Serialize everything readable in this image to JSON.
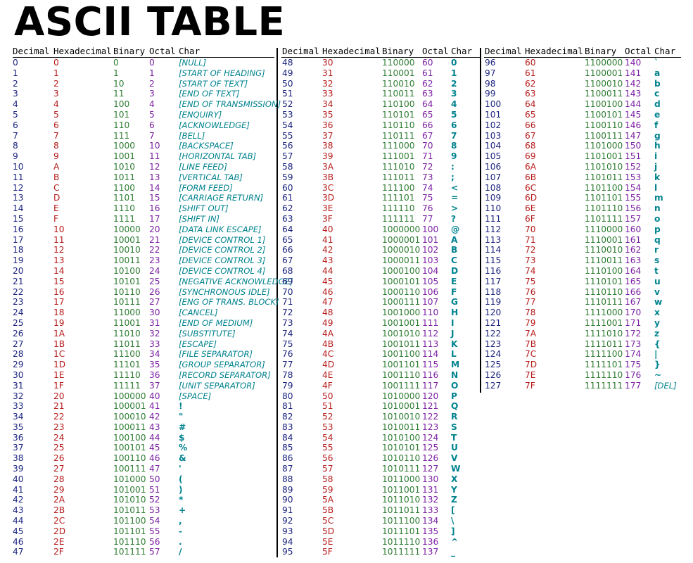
{
  "title": "ASCII TABLE",
  "header": {
    "dec": "Decimal",
    "hex": "Hexadecimal",
    "bin": "Binary",
    "oct": "Octal",
    "chr": "Char"
  },
  "colors": {
    "decimal": "#1a237e",
    "hex": "#b71c1c",
    "binary": "#2e7d32",
    "octal": "#7b1fa2",
    "char": "#00838f"
  },
  "panels": [
    {
      "rows": [
        [
          "0",
          "0",
          "0",
          "0",
          "[NULL]"
        ],
        [
          "1",
          "1",
          "1",
          "1",
          "[START OF HEADING]"
        ],
        [
          "2",
          "2",
          "10",
          "2",
          "[START OF TEXT]"
        ],
        [
          "3",
          "3",
          "11",
          "3",
          "[END OF TEXT]"
        ],
        [
          "4",
          "4",
          "100",
          "4",
          "[END OF TRANSMISSION]"
        ],
        [
          "5",
          "5",
          "101",
          "5",
          "[ENQUIRY]"
        ],
        [
          "6",
          "6",
          "110",
          "6",
          "[ACKNOWLEDGE]"
        ],
        [
          "7",
          "7",
          "111",
          "7",
          "[BELL]"
        ],
        [
          "8",
          "8",
          "1000",
          "10",
          "[BACKSPACE]"
        ],
        [
          "9",
          "9",
          "1001",
          "11",
          "[HORIZONTAL TAB]"
        ],
        [
          "10",
          "A",
          "1010",
          "12",
          "[LINE FEED]"
        ],
        [
          "11",
          "B",
          "1011",
          "13",
          "[VERTICAL TAB]"
        ],
        [
          "12",
          "C",
          "1100",
          "14",
          "[FORM FEED]"
        ],
        [
          "13",
          "D",
          "1101",
          "15",
          "[CARRIAGE RETURN]"
        ],
        [
          "14",
          "E",
          "1110",
          "16",
          "[SHIFT OUT]"
        ],
        [
          "15",
          "F",
          "1111",
          "17",
          "[SHIFT IN]"
        ],
        [
          "16",
          "10",
          "10000",
          "20",
          "[DATA LINK ESCAPE]"
        ],
        [
          "17",
          "11",
          "10001",
          "21",
          "[DEVICE CONTROL 1]"
        ],
        [
          "18",
          "12",
          "10010",
          "22",
          "[DEVICE CONTROL 2]"
        ],
        [
          "19",
          "13",
          "10011",
          "23",
          "[DEVICE CONTROL 3]"
        ],
        [
          "20",
          "14",
          "10100",
          "24",
          "[DEVICE CONTROL 4]"
        ],
        [
          "21",
          "15",
          "10101",
          "25",
          "[NEGATIVE ACKNOWLEDGE]"
        ],
        [
          "22",
          "16",
          "10110",
          "26",
          "[SYNCHRONOUS IDLE]"
        ],
        [
          "23",
          "17",
          "10111",
          "27",
          "[ENG OF TRANS. BLOCK]"
        ],
        [
          "24",
          "18",
          "11000",
          "30",
          "[CANCEL]"
        ],
        [
          "25",
          "19",
          "11001",
          "31",
          "[END OF MEDIUM]"
        ],
        [
          "26",
          "1A",
          "11010",
          "32",
          "[SUBSTITUTE]"
        ],
        [
          "27",
          "1B",
          "11011",
          "33",
          "[ESCAPE]"
        ],
        [
          "28",
          "1C",
          "11100",
          "34",
          "[FILE SEPARATOR]"
        ],
        [
          "29",
          "1D",
          "11101",
          "35",
          "[GROUP SEPARATOR]"
        ],
        [
          "30",
          "1E",
          "11110",
          "36",
          "[RECORD SEPARATOR]"
        ],
        [
          "31",
          "1F",
          "11111",
          "37",
          "[UNIT SEPARATOR]"
        ],
        [
          "32",
          "20",
          "100000",
          "40",
          "[SPACE]"
        ],
        [
          "33",
          "21",
          "100001",
          "41",
          "!"
        ],
        [
          "34",
          "22",
          "100010",
          "42",
          "\""
        ],
        [
          "35",
          "23",
          "100011",
          "43",
          "#"
        ],
        [
          "36",
          "24",
          "100100",
          "44",
          "$"
        ],
        [
          "37",
          "25",
          "100101",
          "45",
          "%"
        ],
        [
          "38",
          "26",
          "100110",
          "46",
          "&"
        ],
        [
          "39",
          "27",
          "100111",
          "47",
          "'"
        ],
        [
          "40",
          "28",
          "101000",
          "50",
          "("
        ],
        [
          "41",
          "29",
          "101001",
          "51",
          ")"
        ],
        [
          "42",
          "2A",
          "101010",
          "52",
          "*"
        ],
        [
          "43",
          "2B",
          "101011",
          "53",
          "+"
        ],
        [
          "44",
          "2C",
          "101100",
          "54",
          ","
        ],
        [
          "45",
          "2D",
          "101101",
          "55",
          "-"
        ],
        [
          "46",
          "2E",
          "101110",
          "56",
          "."
        ],
        [
          "47",
          "2F",
          "101111",
          "57",
          "/"
        ]
      ]
    },
    {
      "rows": [
        [
          "48",
          "30",
          "110000",
          "60",
          "0"
        ],
        [
          "49",
          "31",
          "110001",
          "61",
          "1"
        ],
        [
          "50",
          "32",
          "110010",
          "62",
          "2"
        ],
        [
          "51",
          "33",
          "110011",
          "63",
          "3"
        ],
        [
          "52",
          "34",
          "110100",
          "64",
          "4"
        ],
        [
          "53",
          "35",
          "110101",
          "65",
          "5"
        ],
        [
          "54",
          "36",
          "110110",
          "66",
          "6"
        ],
        [
          "55",
          "37",
          "110111",
          "67",
          "7"
        ],
        [
          "56",
          "38",
          "111000",
          "70",
          "8"
        ],
        [
          "57",
          "39",
          "111001",
          "71",
          "9"
        ],
        [
          "58",
          "3A",
          "111010",
          "72",
          ":"
        ],
        [
          "59",
          "3B",
          "111011",
          "73",
          ";"
        ],
        [
          "60",
          "3C",
          "111100",
          "74",
          "<"
        ],
        [
          "61",
          "3D",
          "111101",
          "75",
          "="
        ],
        [
          "62",
          "3E",
          "111110",
          "76",
          ">"
        ],
        [
          "63",
          "3F",
          "111111",
          "77",
          "?"
        ],
        [
          "64",
          "40",
          "1000000",
          "100",
          "@"
        ],
        [
          "65",
          "41",
          "1000001",
          "101",
          "A"
        ],
        [
          "66",
          "42",
          "1000010",
          "102",
          "B"
        ],
        [
          "67",
          "43",
          "1000011",
          "103",
          "C"
        ],
        [
          "68",
          "44",
          "1000100",
          "104",
          "D"
        ],
        [
          "69",
          "45",
          "1000101",
          "105",
          "E"
        ],
        [
          "70",
          "46",
          "1000110",
          "106",
          "F"
        ],
        [
          "71",
          "47",
          "1000111",
          "107",
          "G"
        ],
        [
          "72",
          "48",
          "1001000",
          "110",
          "H"
        ],
        [
          "73",
          "49",
          "1001001",
          "111",
          "I"
        ],
        [
          "74",
          "4A",
          "1001010",
          "112",
          "J"
        ],
        [
          "75",
          "4B",
          "1001011",
          "113",
          "K"
        ],
        [
          "76",
          "4C",
          "1001100",
          "114",
          "L"
        ],
        [
          "77",
          "4D",
          "1001101",
          "115",
          "M"
        ],
        [
          "78",
          "4E",
          "1001110",
          "116",
          "N"
        ],
        [
          "79",
          "4F",
          "1001111",
          "117",
          "O"
        ],
        [
          "80",
          "50",
          "1010000",
          "120",
          "P"
        ],
        [
          "81",
          "51",
          "1010001",
          "121",
          "Q"
        ],
        [
          "82",
          "52",
          "1010010",
          "122",
          "R"
        ],
        [
          "83",
          "53",
          "1010011",
          "123",
          "S"
        ],
        [
          "84",
          "54",
          "1010100",
          "124",
          "T"
        ],
        [
          "85",
          "55",
          "1010101",
          "125",
          "U"
        ],
        [
          "86",
          "56",
          "1010110",
          "126",
          "V"
        ],
        [
          "87",
          "57",
          "1010111",
          "127",
          "W"
        ],
        [
          "88",
          "58",
          "1011000",
          "130",
          "X"
        ],
        [
          "89",
          "59",
          "1011001",
          "131",
          "Y"
        ],
        [
          "90",
          "5A",
          "1011010",
          "132",
          "Z"
        ],
        [
          "91",
          "5B",
          "1011011",
          "133",
          "["
        ],
        [
          "92",
          "5C",
          "1011100",
          "134",
          "\\"
        ],
        [
          "93",
          "5D",
          "1011101",
          "135",
          "]"
        ],
        [
          "94",
          "5E",
          "1011110",
          "136",
          "^"
        ],
        [
          "95",
          "5F",
          "1011111",
          "137",
          "_"
        ]
      ]
    },
    {
      "rows": [
        [
          "96",
          "60",
          "1100000",
          "140",
          "`"
        ],
        [
          "97",
          "61",
          "1100001",
          "141",
          "a"
        ],
        [
          "98",
          "62",
          "1100010",
          "142",
          "b"
        ],
        [
          "99",
          "63",
          "1100011",
          "143",
          "c"
        ],
        [
          "100",
          "64",
          "1100100",
          "144",
          "d"
        ],
        [
          "101",
          "65",
          "1100101",
          "145",
          "e"
        ],
        [
          "102",
          "66",
          "1100110",
          "146",
          "f"
        ],
        [
          "103",
          "67",
          "1100111",
          "147",
          "g"
        ],
        [
          "104",
          "68",
          "1101000",
          "150",
          "h"
        ],
        [
          "105",
          "69",
          "1101001",
          "151",
          "i"
        ],
        [
          "106",
          "6A",
          "1101010",
          "152",
          "j"
        ],
        [
          "107",
          "6B",
          "1101011",
          "153",
          "k"
        ],
        [
          "108",
          "6C",
          "1101100",
          "154",
          "l"
        ],
        [
          "109",
          "6D",
          "1101101",
          "155",
          "m"
        ],
        [
          "110",
          "6E",
          "1101110",
          "156",
          "n"
        ],
        [
          "111",
          "6F",
          "1101111",
          "157",
          "o"
        ],
        [
          "112",
          "70",
          "1110000",
          "160",
          "p"
        ],
        [
          "113",
          "71",
          "1110001",
          "161",
          "q"
        ],
        [
          "114",
          "72",
          "1110010",
          "162",
          "r"
        ],
        [
          "115",
          "73",
          "1110011",
          "163",
          "s"
        ],
        [
          "116",
          "74",
          "1110100",
          "164",
          "t"
        ],
        [
          "117",
          "75",
          "1110101",
          "165",
          "u"
        ],
        [
          "118",
          "76",
          "1110110",
          "166",
          "v"
        ],
        [
          "119",
          "77",
          "1110111",
          "167",
          "w"
        ],
        [
          "120",
          "78",
          "1111000",
          "170",
          "x"
        ],
        [
          "121",
          "79",
          "1111001",
          "171",
          "y"
        ],
        [
          "122",
          "7A",
          "1111010",
          "172",
          "z"
        ],
        [
          "123",
          "7B",
          "1111011",
          "173",
          "{"
        ],
        [
          "124",
          "7C",
          "1111100",
          "174",
          "|"
        ],
        [
          "125",
          "7D",
          "1111101",
          "175",
          "}"
        ],
        [
          "126",
          "7E",
          "1111110",
          "176",
          "~"
        ],
        [
          "127",
          "7F",
          "1111111",
          "177",
          "[DEL]"
        ]
      ]
    }
  ]
}
